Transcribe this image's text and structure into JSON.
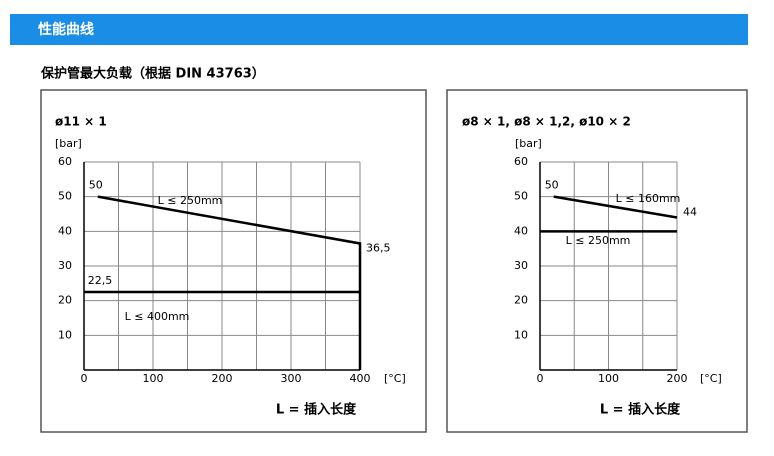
{
  "header": {
    "title": "性能曲线"
  },
  "subtitle": "保护管最大负载（根据 DIN 43763）",
  "chart_data": [
    {
      "type": "line",
      "title": "ø11 × 1",
      "ylabel": "[bar]",
      "xunit": "[°C]",
      "xlabel": "L = 插入长度",
      "xlim": [
        0,
        400
      ],
      "xticks": [
        0,
        100,
        200,
        300,
        400
      ],
      "xgrid": [
        50,
        150,
        250,
        350
      ],
      "ylim": [
        0,
        60
      ],
      "yticks": [
        10,
        20,
        30,
        40,
        50,
        60
      ],
      "grid": true,
      "series": [
        {
          "name": "L ≤ 250mm",
          "color": "#000000",
          "x": [
            20,
            400,
            400
          ],
          "values": [
            50,
            36.5,
            0
          ],
          "value_labels": [
            "50",
            "36,5",
            null
          ]
        },
        {
          "name": "L ≤ 400mm",
          "color": "#000000",
          "x": [
            0,
            400
          ],
          "values": [
            22.5,
            22.5
          ],
          "value_labels": [
            "22,5",
            null
          ]
        }
      ]
    },
    {
      "type": "line",
      "title": "ø8 × 1, ø8 × 1,2, ø10 × 2",
      "ylabel": "[bar]",
      "xunit": "[°C]",
      "xlabel": "L = 插入长度",
      "xlim": [
        0,
        200
      ],
      "xticks": [
        0,
        100,
        200
      ],
      "xgrid": [
        50,
        150
      ],
      "ylim": [
        0,
        60
      ],
      "yticks": [
        10,
        20,
        30,
        40,
        50,
        60
      ],
      "grid": true,
      "series": [
        {
          "name": "L ≤ 160mm",
          "color": "#000000",
          "x": [
            20,
            200
          ],
          "values": [
            50,
            44
          ],
          "value_labels": [
            "50",
            "44"
          ]
        },
        {
          "name": "L ≤ 250mm",
          "color": "#000000",
          "x": [
            0,
            200
          ],
          "values": [
            40,
            40
          ]
        }
      ]
    }
  ]
}
